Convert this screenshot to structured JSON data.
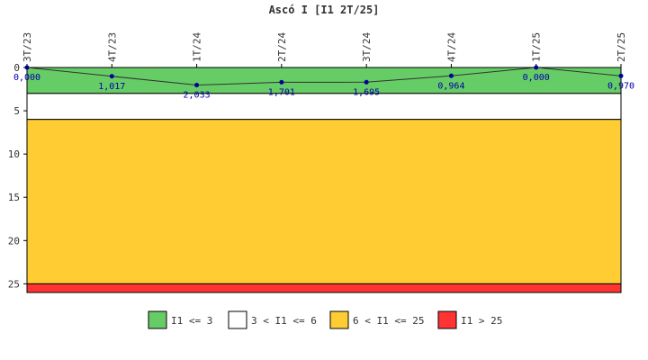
{
  "chart_data": {
    "type": "line",
    "title": "Ascó I [I1 2T/25]",
    "categories": [
      "3T/23",
      "4T/23",
      "1T/24",
      "2T/24",
      "3T/24",
      "4T/24",
      "1T/25",
      "2T/25"
    ],
    "values": [
      0.0,
      1.017,
      2.033,
      1.701,
      1.695,
      0.964,
      0.0,
      0.97
    ],
    "value_labels": [
      "0,000",
      "1,017",
      "2,033",
      "1,701",
      "1,695",
      "0,964",
      "0,000",
      "0,970"
    ],
    "ylim": [
      0,
      26
    ],
    "y_inverted": true,
    "y_ticks": [
      0,
      5,
      10,
      15,
      20,
      25
    ],
    "bands": [
      {
        "from": 0,
        "to": 3,
        "color": "#66cc66",
        "label": "I1 <= 3"
      },
      {
        "from": 3,
        "to": 6,
        "color": "#ffffff",
        "label": "3 < I1 <= 6"
      },
      {
        "from": 6,
        "to": 25,
        "color": "#ffcc33",
        "label": "6 < I1 <= 25"
      },
      {
        "from": 25,
        "to": 26,
        "color": "#ff3333",
        "label": "I1 > 25"
      }
    ],
    "line_color": "#333333",
    "marker_color": "#000099",
    "legend_position": "bottom"
  }
}
